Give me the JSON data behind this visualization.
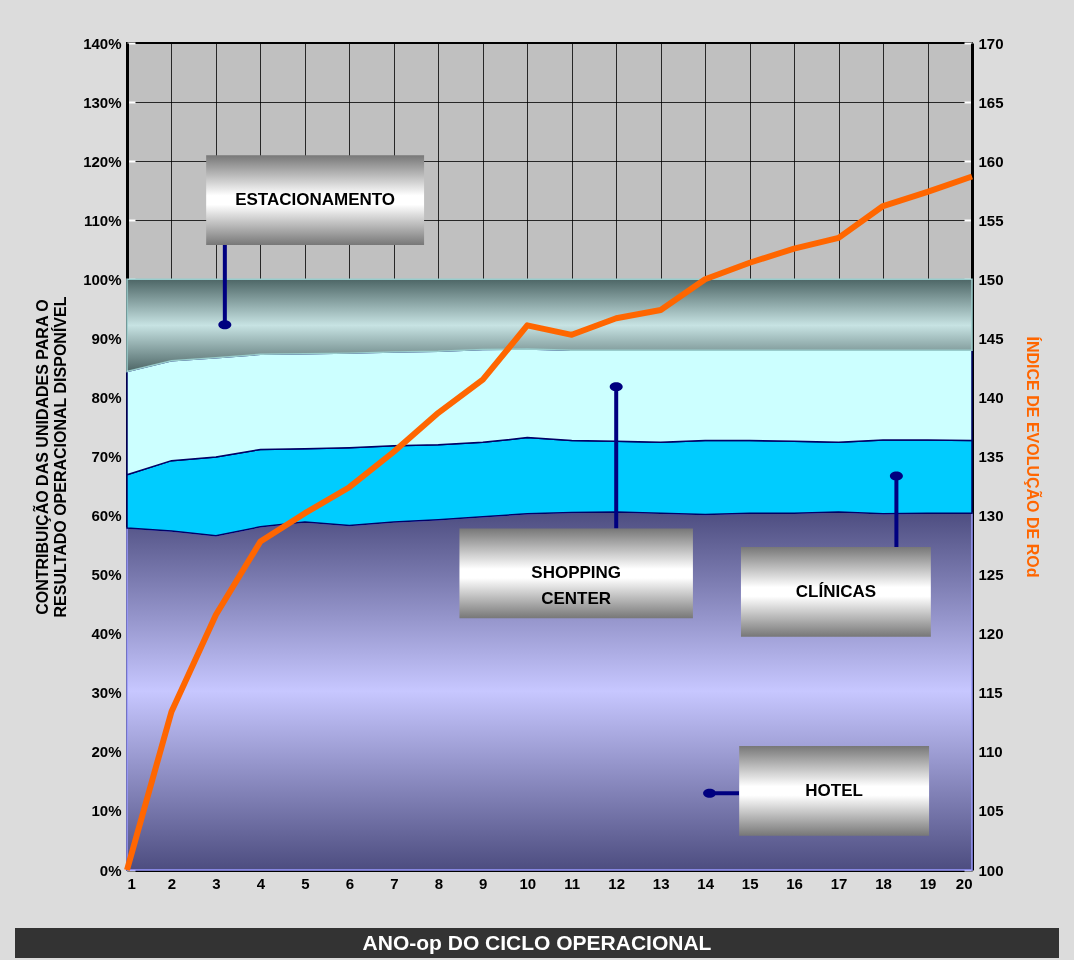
{
  "chart_data": {
    "type": "area",
    "stacked": true,
    "xlabel": "ANO-op DO CICLO OPERACIONAL",
    "ylabel": "CONTRIBUIÇÃO DAS UNIDADES PARA O\nRESULTADO OPERACIONAL DISPONÍVEL",
    "y2label": "ÍNDICE DE EVOLUÇÃO DE ROd",
    "x": [
      1,
      2,
      3,
      4,
      5,
      6,
      7,
      8,
      9,
      10,
      11,
      12,
      13,
      14,
      15,
      16,
      17,
      18,
      19,
      20
    ],
    "xlim": [
      1,
      20
    ],
    "xticks": [
      1,
      2,
      3,
      4,
      5,
      6,
      7,
      8,
      9,
      10,
      11,
      12,
      13,
      14,
      15,
      16,
      17,
      18,
      19,
      20
    ],
    "ylim": [
      0,
      140
    ],
    "yticks": [
      {
        "value": 0,
        "label": "0%"
      },
      {
        "value": 10,
        "label": "10%"
      },
      {
        "value": 20,
        "label": "20%"
      },
      {
        "value": 30,
        "label": "30%"
      },
      {
        "value": 40,
        "label": "40%"
      },
      {
        "value": 50,
        "label": "50%"
      },
      {
        "value": 60,
        "label": "60%"
      },
      {
        "value": 70,
        "label": "70%"
      },
      {
        "value": 80,
        "label": "80%"
      },
      {
        "value": 90,
        "label": "90%"
      },
      {
        "value": 100,
        "label": "100%"
      },
      {
        "value": 110,
        "label": "110%"
      },
      {
        "value": 120,
        "label": "120%"
      },
      {
        "value": 130,
        "label": "130%"
      },
      {
        "value": 140,
        "label": "140%"
      }
    ],
    "y2lim": [
      100,
      170
    ],
    "y2ticks": [
      100,
      105,
      110,
      115,
      120,
      125,
      130,
      135,
      140,
      145,
      150,
      155,
      160,
      165,
      170
    ],
    "grid": true,
    "annotations": [
      "ESTACIONAMENTO",
      "SHOPPING CENTER",
      "CLÍNICAS",
      "HOTEL"
    ],
    "series": [
      {
        "color": "#9999ff",
        "values": [
          57.9,
          57.4,
          56.6,
          58.1,
          58.9,
          58.3,
          58.9,
          59.3,
          59.8,
          60.3,
          60.5,
          60.6,
          60.4,
          60.2,
          60.4,
          60.4,
          60.6,
          60.3,
          60.4,
          60.4
        ]
      },
      {
        "color": "#00ccff",
        "values": [
          9.0,
          11.9,
          13.3,
          13.1,
          12.4,
          13.2,
          12.9,
          12.7,
          12.6,
          12.9,
          12.2,
          12.0,
          12.0,
          12.5,
          12.3,
          12.2,
          11.8,
          12.5,
          12.4,
          12.3
        ]
      },
      {
        "color": "#ccffff",
        "values": [
          17.5,
          16.9,
          16.8,
          16.1,
          16.1,
          16.0,
          15.9,
          15.8,
          15.7,
          15.0,
          15.3,
          15.4,
          15.6,
          15.3,
          15.3,
          15.4,
          15.6,
          15.2,
          15.2,
          15.3
        ]
      },
      {
        "color": "#99cccc",
        "values": [
          15.6,
          13.8,
          13.3,
          12.7,
          12.6,
          12.5,
          12.3,
          12.2,
          11.9,
          11.8,
          12.0,
          12.0,
          12.0,
          12.0,
          12.0,
          12.0,
          12.0,
          12.0,
          12.0,
          12.0
        ]
      },
      {
        "type": "line",
        "axis": "y2",
        "color": "#ff6600",
        "values": [
          100,
          113.4,
          121.6,
          127.8,
          130.2,
          132.4,
          135.4,
          138.7,
          141.5,
          146.1,
          145.3,
          146.7,
          147.4,
          150.0,
          151.4,
          152.6,
          153.5,
          156.2,
          157.4,
          158.7
        ]
      }
    ]
  }
}
